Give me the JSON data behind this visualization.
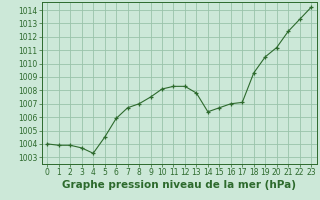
{
  "x": [
    0,
    1,
    2,
    3,
    4,
    5,
    6,
    7,
    8,
    9,
    10,
    11,
    12,
    13,
    14,
    15,
    16,
    17,
    18,
    19,
    20,
    21,
    22,
    23
  ],
  "y": [
    1004.0,
    1003.9,
    1003.9,
    1003.7,
    1003.3,
    1004.5,
    1005.9,
    1006.7,
    1007.0,
    1007.5,
    1008.1,
    1008.3,
    1008.3,
    1007.8,
    1006.4,
    1006.7,
    1007.0,
    1007.1,
    1009.3,
    1010.5,
    1011.2,
    1012.4,
    1013.3,
    1014.2
  ],
  "line_color": "#2d6a2d",
  "marker_color": "#2d6a2d",
  "bg_color": "#cce8d8",
  "grid_color": "#99c4aa",
  "title": "Graphe pression niveau de la mer (hPa)",
  "ylabel_ticks": [
    1003,
    1004,
    1005,
    1006,
    1007,
    1008,
    1009,
    1010,
    1011,
    1012,
    1013,
    1014
  ],
  "ylim": [
    1002.5,
    1014.6
  ],
  "xlim": [
    -0.5,
    23.5
  ],
  "title_fontsize": 7.5,
  "tick_fontsize": 5.5
}
